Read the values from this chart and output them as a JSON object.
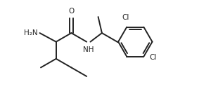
{
  "bg_color": "#ffffff",
  "line_color": "#222222",
  "line_width": 1.4,
  "font_size": 7.5,
  "figsize": [
    3.1,
    1.37
  ],
  "dpi": 100,
  "xlim": [
    0,
    10.5
  ],
  "ylim": [
    0,
    4.5
  ]
}
